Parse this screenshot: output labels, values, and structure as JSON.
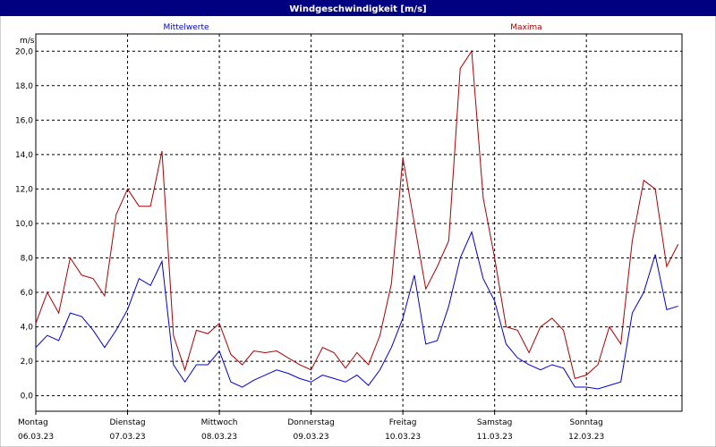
{
  "chart_data": {
    "type": "line",
    "title": "Windgeschwindigkeit [m/s]",
    "y_label": "m/s",
    "x": [
      0,
      3,
      6,
      9,
      12,
      15,
      18,
      21,
      24,
      27,
      30,
      33,
      36,
      39,
      42,
      45,
      48,
      51,
      54,
      57,
      60,
      63,
      66,
      69,
      72,
      75,
      78,
      81,
      84,
      87,
      90,
      93,
      96,
      99,
      102,
      105,
      108,
      111,
      114,
      117,
      120,
      123,
      126,
      129,
      132,
      135,
      138,
      141,
      144,
      147,
      150,
      153,
      156,
      159,
      162,
      165,
      168
    ],
    "series": [
      {
        "name": "Mittelwerte",
        "color": "#0000cc",
        "values": [
          2.8,
          3.5,
          3.2,
          4.8,
          4.6,
          3.8,
          2.8,
          3.8,
          5.0,
          6.8,
          6.4,
          7.8,
          1.8,
          0.8,
          1.8,
          1.8,
          2.6,
          0.8,
          0.5,
          0.9,
          1.2,
          1.5,
          1.3,
          1.0,
          0.8,
          1.2,
          1.0,
          0.8,
          1.2,
          0.6,
          1.5,
          2.8,
          4.5,
          7.0,
          3.0,
          3.2,
          5.2,
          8.0,
          9.5,
          6.8,
          5.5,
          3.0,
          2.2,
          1.8,
          1.5,
          1.8,
          1.6,
          0.5,
          0.5,
          0.4,
          0.6,
          0.8,
          4.8,
          6.0,
          8.2,
          5.0,
          5.2
        ]
      },
      {
        "name": "Maxima",
        "color": "#aa0000",
        "values": [
          4.2,
          6.0,
          4.8,
          8.0,
          7.0,
          6.8,
          5.8,
          10.5,
          12.0,
          11.0,
          11.0,
          14.2,
          3.5,
          1.5,
          3.8,
          3.6,
          4.2,
          2.4,
          1.8,
          2.6,
          2.5,
          2.6,
          2.2,
          1.8,
          1.5,
          2.8,
          2.5,
          1.6,
          2.5,
          1.8,
          3.5,
          6.5,
          13.8,
          10.0,
          6.2,
          7.5,
          9.0,
          19.0,
          20.0,
          11.5,
          8.0,
          4.0,
          3.8,
          2.5,
          4.0,
          4.5,
          3.8,
          1.0,
          1.2,
          1.8,
          4.0,
          3.0,
          9.0,
          12.5,
          12.0,
          7.5,
          8.8
        ]
      }
    ],
    "xlim": [
      0,
      169
    ],
    "xticks": [
      {
        "value": 0,
        "label": "Montag",
        "date": "06.03.23"
      },
      {
        "value": 24,
        "label": "Dienstag",
        "date": "07.03.23"
      },
      {
        "value": 48,
        "label": "Mittwoch",
        "date": "08.03.23"
      },
      {
        "value": 72,
        "label": "Donnerstag",
        "date": "09.03.23"
      },
      {
        "value": 96,
        "label": "Freitag",
        "date": "10.03.23"
      },
      {
        "value": 120,
        "label": "Samstag",
        "date": "11.03.23"
      },
      {
        "value": 144,
        "label": "Sonntag",
        "date": "12.03.23"
      }
    ],
    "ylim": [
      -0.9,
      21.0
    ],
    "yticks": [
      {
        "value": 0,
        "label": "0,0"
      },
      {
        "value": 2,
        "label": "2,0"
      },
      {
        "value": 4,
        "label": "4,0"
      },
      {
        "value": 6,
        "label": "6,0"
      },
      {
        "value": 8,
        "label": "8,0"
      },
      {
        "value": 10,
        "label": "10,0"
      },
      {
        "value": 12,
        "label": "12,0"
      },
      {
        "value": 14,
        "label": "14,0"
      },
      {
        "value": 16,
        "label": "16,0"
      },
      {
        "value": 18,
        "label": "18,0"
      },
      {
        "value": 20,
        "label": "20,0"
      }
    ],
    "grid": true
  }
}
